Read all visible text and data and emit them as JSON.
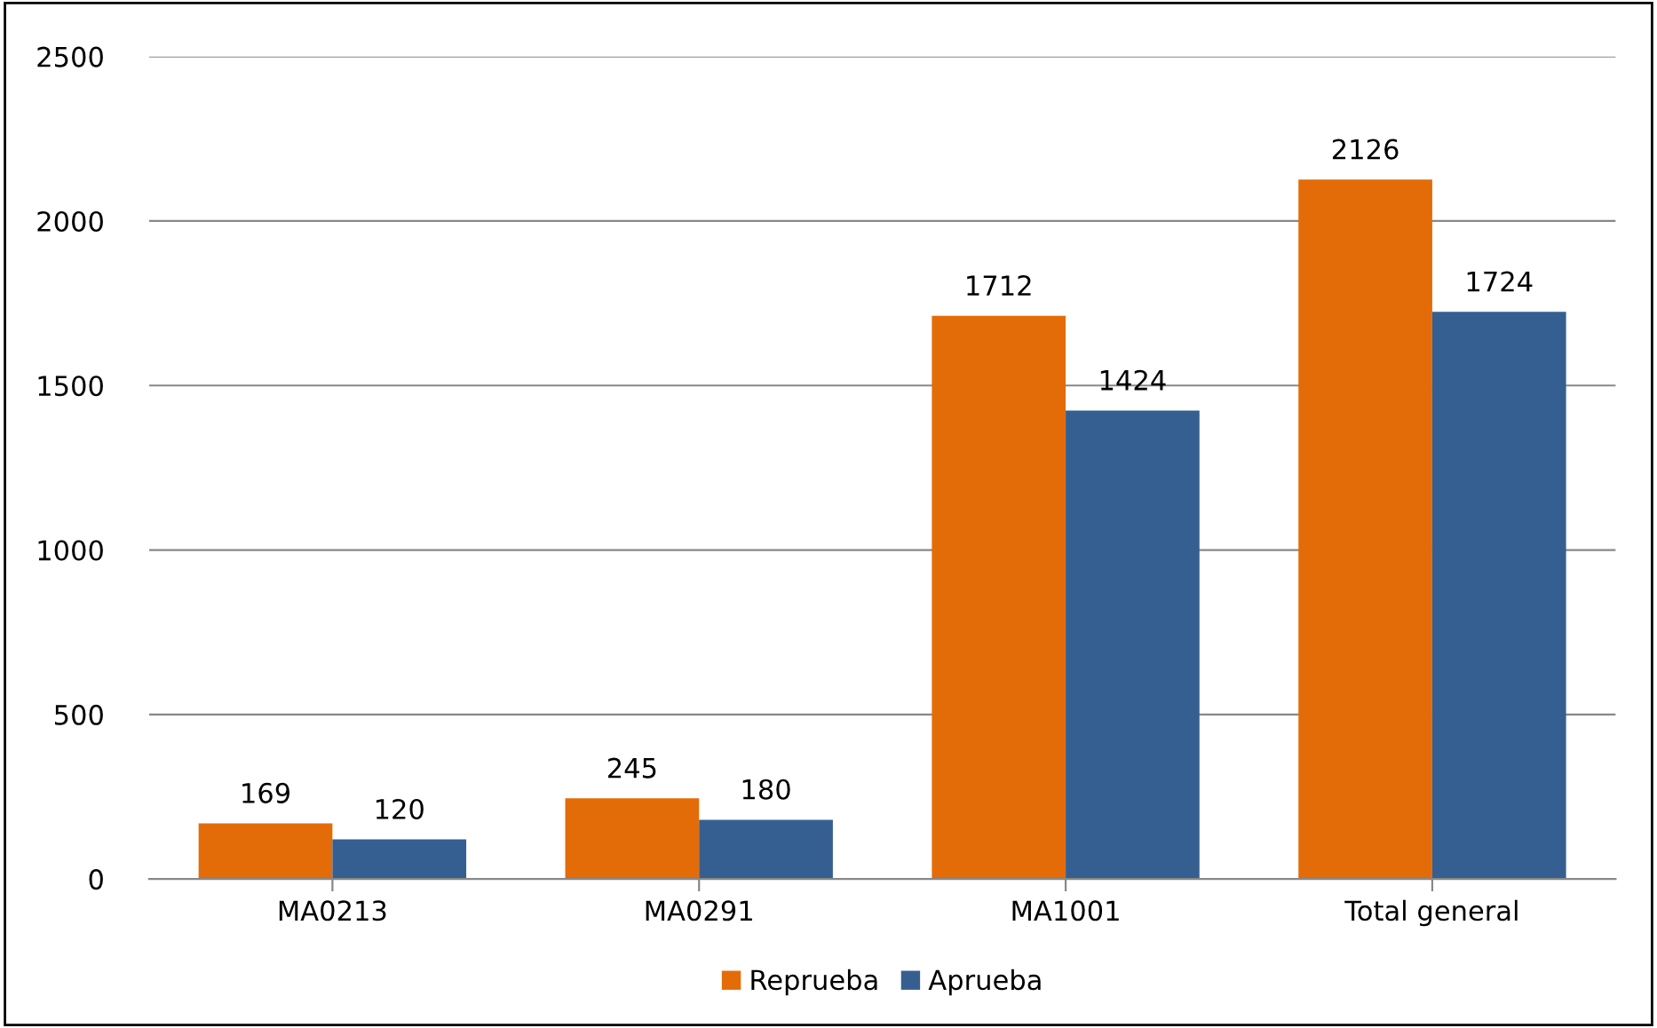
{
  "chart_data": {
    "type": "bar",
    "categories": [
      "MA0213",
      "MA0291",
      "MA1001",
      "Total general"
    ],
    "series": [
      {
        "name": "Reprueba",
        "color": "#e36c09",
        "values": [
          169,
          245,
          1712,
          2126
        ]
      },
      {
        "name": "Aprueba",
        "color": "#365f91",
        "values": [
          120,
          180,
          1424,
          1724
        ]
      }
    ],
    "ylim": [
      0,
      2500
    ],
    "yticks": [
      0,
      500,
      1000,
      1500,
      2000,
      2500
    ],
    "grid": "y",
    "legend": "bottom",
    "data_labels": true
  }
}
